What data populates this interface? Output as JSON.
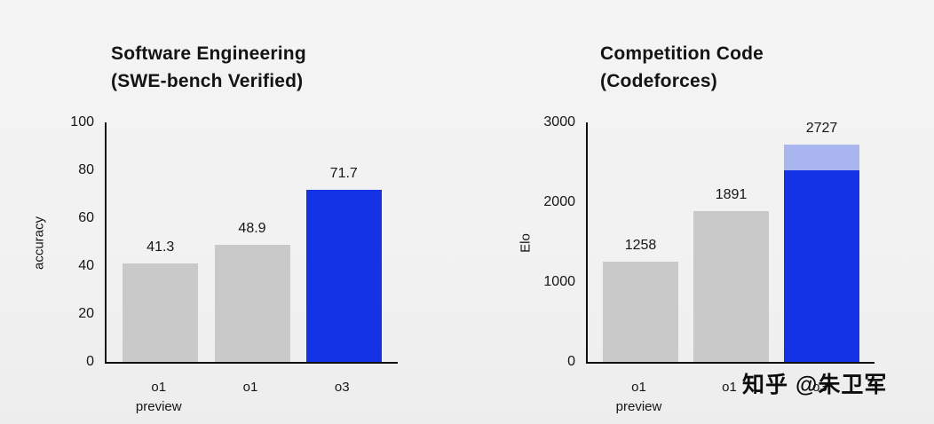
{
  "watermark": {
    "text": "知乎 @朱卫军"
  },
  "chart_data": [
    {
      "type": "bar",
      "title_lines": [
        "Software Engineering",
        "(SWE-bench Verified)"
      ],
      "xlabel": "",
      "ylabel": "accuracy",
      "ylim": [
        0,
        100
      ],
      "yticks": [
        0,
        20,
        40,
        60,
        80,
        100
      ],
      "grid": false,
      "legend": "none",
      "categories": [
        [
          "o1",
          "preview"
        ],
        [
          "o1"
        ],
        [
          "o3"
        ]
      ],
      "bars": [
        {
          "label": "o1 preview",
          "value": 41.3,
          "display": "41.3",
          "color": "#c9c9c9"
        },
        {
          "label": "o1",
          "value": 48.9,
          "display": "48.9",
          "color": "#c9c9c9"
        },
        {
          "label": "o3",
          "value": 71.7,
          "display": "71.7",
          "color": "#1533e6"
        }
      ]
    },
    {
      "type": "bar",
      "title_lines": [
        "Competition Code",
        "(Codeforces)"
      ],
      "xlabel": "",
      "ylabel": "Elo",
      "ylim": [
        0,
        3000
      ],
      "yticks": [
        0,
        1000,
        2000,
        3000
      ],
      "grid": false,
      "legend": "none",
      "categories": [
        [
          "o1",
          "preview"
        ],
        [
          "o1"
        ],
        [
          "o3"
        ]
      ],
      "bars": [
        {
          "label": "o1 preview",
          "value": 1258,
          "display": "1258",
          "color": "#c9c9c9"
        },
        {
          "label": "o1",
          "value": 1891,
          "display": "1891",
          "color": "#c9c9c9"
        },
        {
          "label": "o3",
          "value": 2727,
          "display": "2727",
          "color": "#1533e6",
          "segments": [
            {
              "value": 2400,
              "color": "#1533e6"
            },
            {
              "value": 327,
              "color": "#a9b6ef"
            }
          ]
        }
      ]
    }
  ],
  "colors": {
    "background": "#f2f2f2",
    "bar_gray": "#c9c9c9",
    "bar_blue": "#1533e6",
    "bar_light_blue": "#a9b6ef",
    "axis": "#111111",
    "text": "#161616"
  }
}
